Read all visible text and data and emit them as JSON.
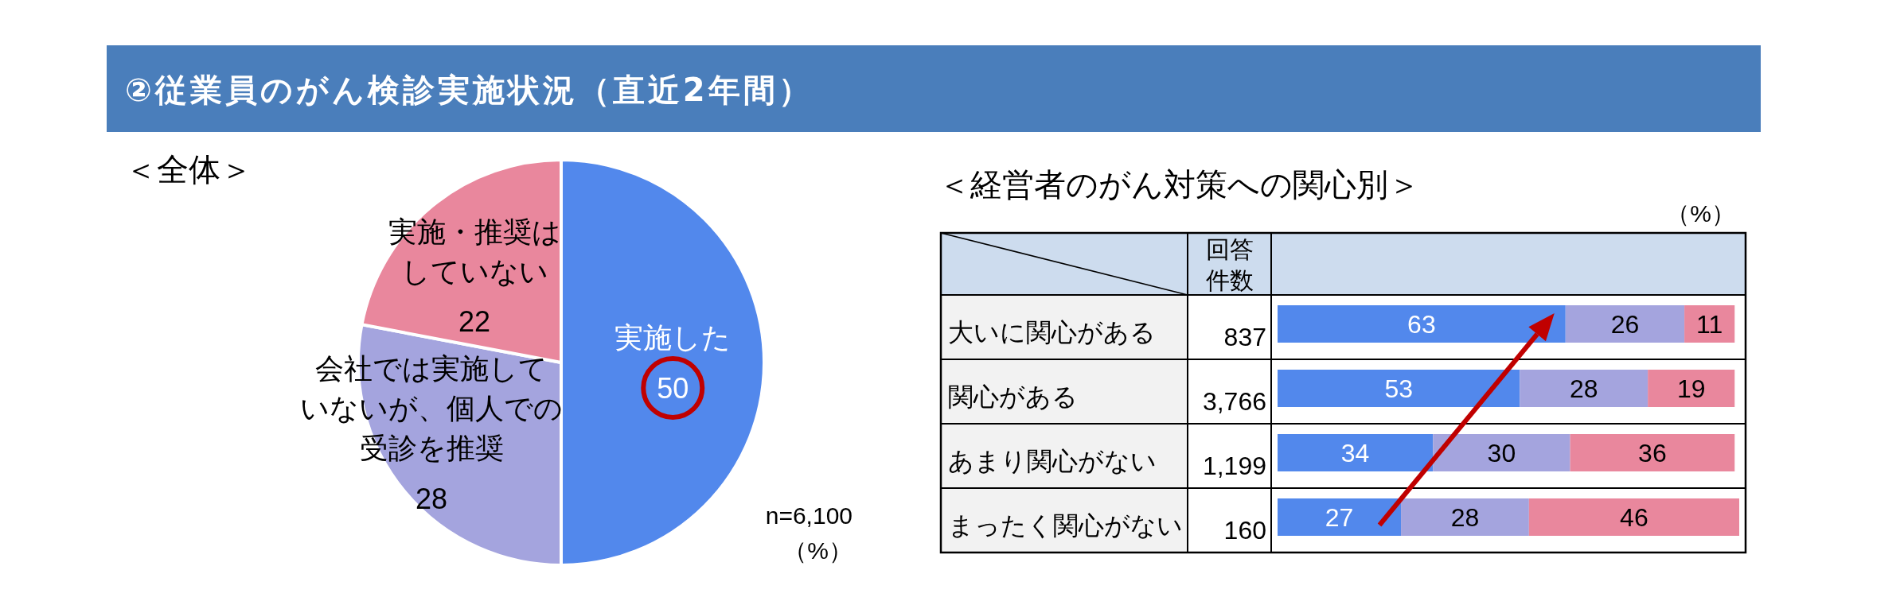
{
  "chart_data": [
    {
      "type": "pie",
      "title": "②従業員のがん検診実施状況（直近2年間）",
      "subtitle": "＜全体＞",
      "categories": [
        "実施した",
        "会社では実施していないが、個人での受診を推奨",
        "実施・推奨はしていない"
      ],
      "values": [
        50,
        28,
        22
      ],
      "colors": [
        "#5288ec",
        "#a4a4de",
        "#e9879d"
      ],
      "data_labels": true,
      "annotations": [
        "n=6,100",
        "（%）"
      ]
    },
    {
      "type": "bar",
      "orientation": "horizontal",
      "stacked": true,
      "title": "＜経営者のがん対策への関心別＞",
      "categories": [
        "大いに関心がある",
        "関心がある",
        "あまり関心がない",
        "まったく関心がない"
      ],
      "series": [
        {
          "color": "#5288ec",
          "values": [
            63,
            53,
            34,
            27
          ]
        },
        {
          "color": "#a4a4de",
          "values": [
            26,
            28,
            30,
            28
          ]
        },
        {
          "color": "#e9879d",
          "values": [
            11,
            19,
            36,
            46
          ]
        }
      ],
      "xlim": [
        0,
        101
      ],
      "data_labels": true,
      "tick_labels": "y",
      "annotations": [
        "（%）",
        "回答件数",
        "837",
        "3,766",
        "1,199",
        "160"
      ]
    }
  ]
}
